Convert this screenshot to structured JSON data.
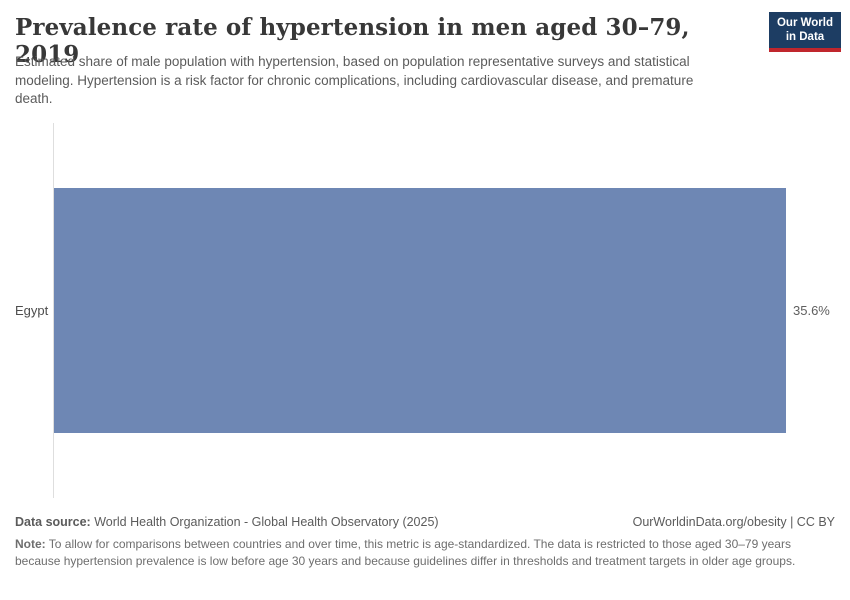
{
  "header": {
    "title": "Prevalence rate of hypertension in men aged 30–79, 2019",
    "subtitle": "Estimated share of male population with hypertension, based on population representative surveys and statistical modeling. Hypertension is a risk factor for chronic complications, including cardiovascular disease, and premature death.",
    "logo": {
      "line1": "Our World",
      "line2": "in Data",
      "bg_color": "#1d3d63",
      "accent_color": "#c0262d"
    }
  },
  "chart_data": {
    "type": "bar",
    "orientation": "horizontal",
    "title": "Prevalence rate of hypertension in men aged 30–79, 2019",
    "categories": [
      "Egypt"
    ],
    "values": [
      35.6
    ],
    "value_labels": [
      "35.6%"
    ],
    "bar_color": "#6e87b4",
    "axis_line_color": "#dedede",
    "xlim": [
      0,
      35.6
    ],
    "grid": false,
    "legend": "none"
  },
  "footer": {
    "datasource_label": "Data source:",
    "datasource_text": " World Health Organization - Global Health Observatory (2025)",
    "link_text": "OurWorldinData.org/obesity | CC BY",
    "note_label": "Note:",
    "note_text": " To allow for comparisons between countries and over time, this metric is age-standardized. The data is restricted to those aged 30–79 years because hypertension prevalence is low before age 30 years and because guidelines differ in thresholds and treatment targets in older age groups."
  }
}
